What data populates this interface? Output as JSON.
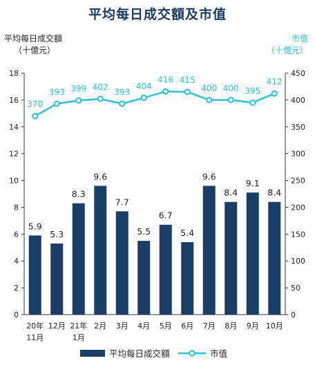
{
  "chart_data": {
    "type": "bar+line",
    "title": "平均每日成交額及市值",
    "categories": [
      [
        "20年",
        "11月"
      ],
      [
        "12月"
      ],
      [
        "21年",
        "1月"
      ],
      [
        "2月"
      ],
      [
        "3月"
      ],
      [
        "4月"
      ],
      [
        "5月"
      ],
      [
        "6月"
      ],
      [
        "7月"
      ],
      [
        "8月"
      ],
      [
        "9月"
      ],
      [
        "10月"
      ]
    ],
    "series": [
      {
        "name": "平均每日成交額",
        "type": "bar",
        "axis": "left",
        "values": [
          5.9,
          5.3,
          8.3,
          9.6,
          7.7,
          5.5,
          6.7,
          5.4,
          9.6,
          8.4,
          9.1,
          8.4
        ]
      },
      {
        "name": "市值",
        "type": "line",
        "axis": "right",
        "values": [
          370,
          393,
          399,
          402,
          393,
          404,
          416,
          415,
          400,
          400,
          395,
          412
        ]
      }
    ],
    "left_axis": {
      "label": "平均每日成交額",
      "unit": "（十億元）",
      "ylim": [
        0,
        18
      ],
      "ticks": [
        0,
        2,
        4,
        6,
        8,
        10,
        12,
        14,
        16,
        18
      ]
    },
    "right_axis": {
      "label": "市值",
      "unit": "（十億元）",
      "ylim": [
        0,
        450
      ],
      "ticks": [
        0,
        50,
        100,
        150,
        200,
        250,
        300,
        350,
        400,
        450
      ]
    },
    "grid": false,
    "legend_position": "bottom",
    "colors": {
      "bar": "#1a3f66",
      "line": "#27c2d6",
      "title": "#1a3b64"
    }
  }
}
